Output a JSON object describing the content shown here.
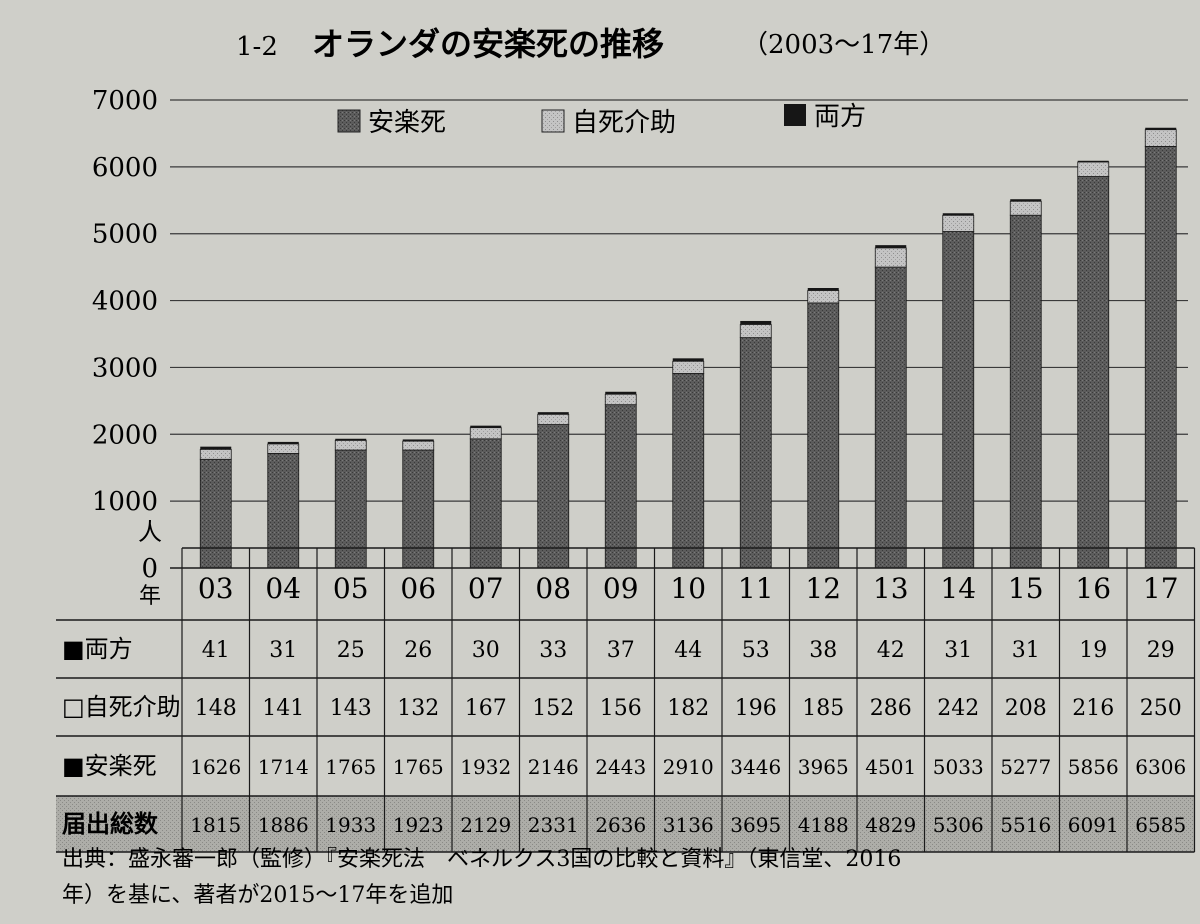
{
  "header": {
    "figure_number": "1-2",
    "title": "オランダの安楽死の推移",
    "period": "（2003〜17年）"
  },
  "chart_data": {
    "type": "bar",
    "stacked": true,
    "categories": [
      "03",
      "04",
      "05",
      "06",
      "07",
      "08",
      "09",
      "10",
      "11",
      "12",
      "13",
      "14",
      "15",
      "16",
      "17"
    ],
    "y_ticks": [
      "0",
      "1000",
      "2000",
      "3000",
      "4000",
      "5000",
      "6000",
      "7000"
    ],
    "ylim": [
      0,
      7000
    ],
    "y_unit": "人",
    "x_unit": "年",
    "grid": true,
    "legend_position": "top",
    "legend": [
      "安楽死",
      "自死介助",
      "両方"
    ],
    "series": [
      {
        "name": "安楽死",
        "color": "#5a5a5a",
        "values": [
          1626,
          1714,
          1765,
          1765,
          1932,
          2146,
          2443,
          2910,
          3446,
          3965,
          4501,
          5033,
          5277,
          5856,
          6306
        ]
      },
      {
        "name": "自死介助",
        "color": "#bdbdbd",
        "values": [
          148,
          141,
          143,
          132,
          167,
          152,
          156,
          182,
          196,
          185,
          286,
          242,
          208,
          216,
          250
        ]
      },
      {
        "name": "両方",
        "color": "#161616",
        "values": [
          41,
          31,
          25,
          26,
          30,
          33,
          37,
          44,
          53,
          38,
          42,
          31,
          31,
          19,
          29
        ]
      }
    ],
    "table": {
      "year_label": "年",
      "rows": [
        {
          "label": "■両方",
          "values": [
            "41",
            "31",
            "25",
            "26",
            "30",
            "33",
            "37",
            "44",
            "53",
            "38",
            "42",
            "31",
            "31",
            "19",
            "29"
          ]
        },
        {
          "label": "□自死介助",
          "values": [
            "148",
            "141",
            "143",
            "132",
            "167",
            "152",
            "156",
            "182",
            "196",
            "185",
            "286",
            "242",
            "208",
            "216",
            "250"
          ]
        },
        {
          "label": "■安楽死",
          "values": [
            "1626",
            "1714",
            "1765",
            "1765",
            "1932",
            "2146",
            "2443",
            "2910",
            "3446",
            "3965",
            "4501",
            "5033",
            "5277",
            "5856",
            "6306"
          ]
        },
        {
          "label": "届出総数",
          "values": [
            "1815",
            "1886",
            "1933",
            "1923",
            "2129",
            "2331",
            "2636",
            "3136",
            "3695",
            "4188",
            "4829",
            "5306",
            "5516",
            "6091",
            "6585"
          ]
        }
      ]
    }
  },
  "source": {
    "line1": "出典：盛永審一郎（監修）『安楽死法　ベネルクス3国の比較と資料』（東信堂、2016",
    "line2": "年）を基に、著者が2015〜17年を追加"
  }
}
